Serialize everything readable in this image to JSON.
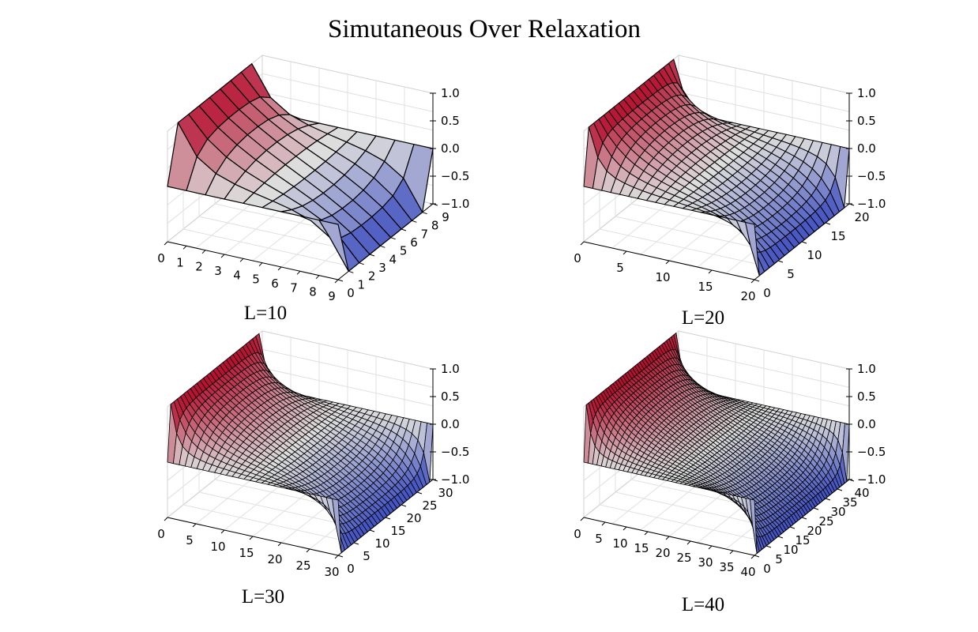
{
  "figure": {
    "title": "Simutaneous Over Relaxation"
  },
  "colormap": {
    "name": "coolwarm",
    "low": "#3b4cc0",
    "mid": "#dddddd",
    "high": "#b40426",
    "edge_color": "#000000",
    "pane_color": "#f2f2f2"
  },
  "chart_data": [
    {
      "type": "surface3d",
      "caption": "L=10",
      "grid_size": 10,
      "xlim": [
        0,
        9
      ],
      "ylim": [
        0,
        9
      ],
      "zlim": [
        -1.0,
        1.0
      ],
      "x_ticks": [
        "0",
        "1",
        "2",
        "3",
        "4",
        "5",
        "6",
        "7",
        "8",
        "9"
      ],
      "y_ticks": [
        "0",
        "1",
        "2",
        "3",
        "4",
        "5",
        "6",
        "7",
        "8",
        "9"
      ],
      "z_ticks": [
        "1.0",
        "0.5",
        "0.0",
        "−0.5",
        "−1.0"
      ],
      "boundary": "z = 1 along one edge, z = -1 along the opposite edge, z = 0 elsewhere"
    },
    {
      "type": "surface3d",
      "caption": "L=20",
      "grid_size": 20,
      "xlim": [
        0,
        20
      ],
      "ylim": [
        0,
        20
      ],
      "zlim": [
        -1.0,
        1.0
      ],
      "x_ticks": [
        "0",
        "5",
        "10",
        "15",
        "20"
      ],
      "y_ticks": [
        "0",
        "5",
        "10",
        "15",
        "20"
      ],
      "z_ticks": [
        "1.0",
        "0.5",
        "0.0",
        "−0.5",
        "−1.0"
      ],
      "boundary": "z = 1 along one edge, z = -1 along the opposite edge, z = 0 elsewhere"
    },
    {
      "type": "surface3d",
      "caption": "L=30",
      "grid_size": 30,
      "xlim": [
        0,
        30
      ],
      "ylim": [
        0,
        30
      ],
      "zlim": [
        -1.0,
        1.0
      ],
      "x_ticks": [
        "0",
        "5",
        "10",
        "15",
        "20",
        "25",
        "30"
      ],
      "y_ticks": [
        "0",
        "5",
        "10",
        "15",
        "20",
        "25",
        "30"
      ],
      "z_ticks": [
        "1.0",
        "0.5",
        "0.0",
        "−0.5",
        "−1.0"
      ],
      "boundary": "z = 1 along one edge, z = -1 along the opposite edge, z = 0 elsewhere"
    },
    {
      "type": "surface3d",
      "caption": "L=40",
      "grid_size": 40,
      "xlim": [
        0,
        40
      ],
      "ylim": [
        0,
        40
      ],
      "zlim": [
        -1.0,
        1.0
      ],
      "x_ticks": [
        "0",
        "5",
        "10",
        "15",
        "20",
        "25",
        "30",
        "35",
        "40"
      ],
      "y_ticks": [
        "0",
        "5",
        "10",
        "15",
        "20",
        "25",
        "30",
        "35",
        "40"
      ],
      "z_ticks": [
        "1.0",
        "0.5",
        "0.0",
        "−0.5",
        "−1.0"
      ],
      "boundary": "z = 1 along one edge, z = -1 along the opposite edge, z = 0 elsewhere"
    }
  ]
}
